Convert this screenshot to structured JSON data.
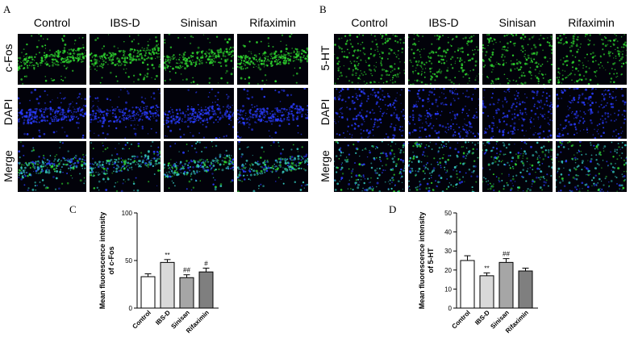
{
  "panels": {
    "A": {
      "label": "A",
      "columns": [
        "Control",
        "IBS-D",
        "Sinisan",
        "Rifaximin"
      ],
      "rows": [
        "c-Fos",
        "DAPI",
        "Merge"
      ]
    },
    "B": {
      "label": "B",
      "columns": [
        "Control",
        "IBS-D",
        "Sinisan",
        "Rifaximin"
      ],
      "rows": [
        "5-HT",
        "DAPI",
        "Merge"
      ]
    },
    "C": {
      "label": "C"
    },
    "D": {
      "label": "D"
    }
  },
  "colors": {
    "green_stain": "#2fd82f",
    "blue_stain": "#2a3cff",
    "merge_stain": "#35c9c0",
    "bar_control": "#ffffff",
    "bar_ibsd": "#d9d9d9",
    "bar_sinisan": "#a6a6a6",
    "bar_rifaximin": "#7f7f7f"
  },
  "chart_data": [
    {
      "type": "bar",
      "panel": "C",
      "categories": [
        "Control",
        "IBS-D",
        "Sinisan",
        "Rifaximin"
      ],
      "values": [
        33,
        48,
        32,
        38
      ],
      "errors": [
        3,
        3,
        3,
        4
      ],
      "annotations": [
        "",
        "**",
        "##",
        "#"
      ],
      "ylabel": "Mean fluorescence intensity of  c-Fos",
      "ylim": [
        0,
        100
      ],
      "yticks": [
        0,
        50,
        100
      ]
    },
    {
      "type": "bar",
      "panel": "D",
      "categories": [
        "Control",
        "IBS-D",
        "Sinisan",
        "Rifaximin"
      ],
      "values": [
        25,
        17,
        24,
        19.5
      ],
      "errors": [
        2.5,
        1.5,
        2,
        1.5
      ],
      "annotations": [
        "",
        "**",
        "##",
        ""
      ],
      "ylabel": "Mean fluorescence intensity of 5-HT",
      "ylim": [
        0,
        50
      ],
      "yticks": [
        0,
        10,
        20,
        30,
        40,
        50
      ]
    }
  ]
}
